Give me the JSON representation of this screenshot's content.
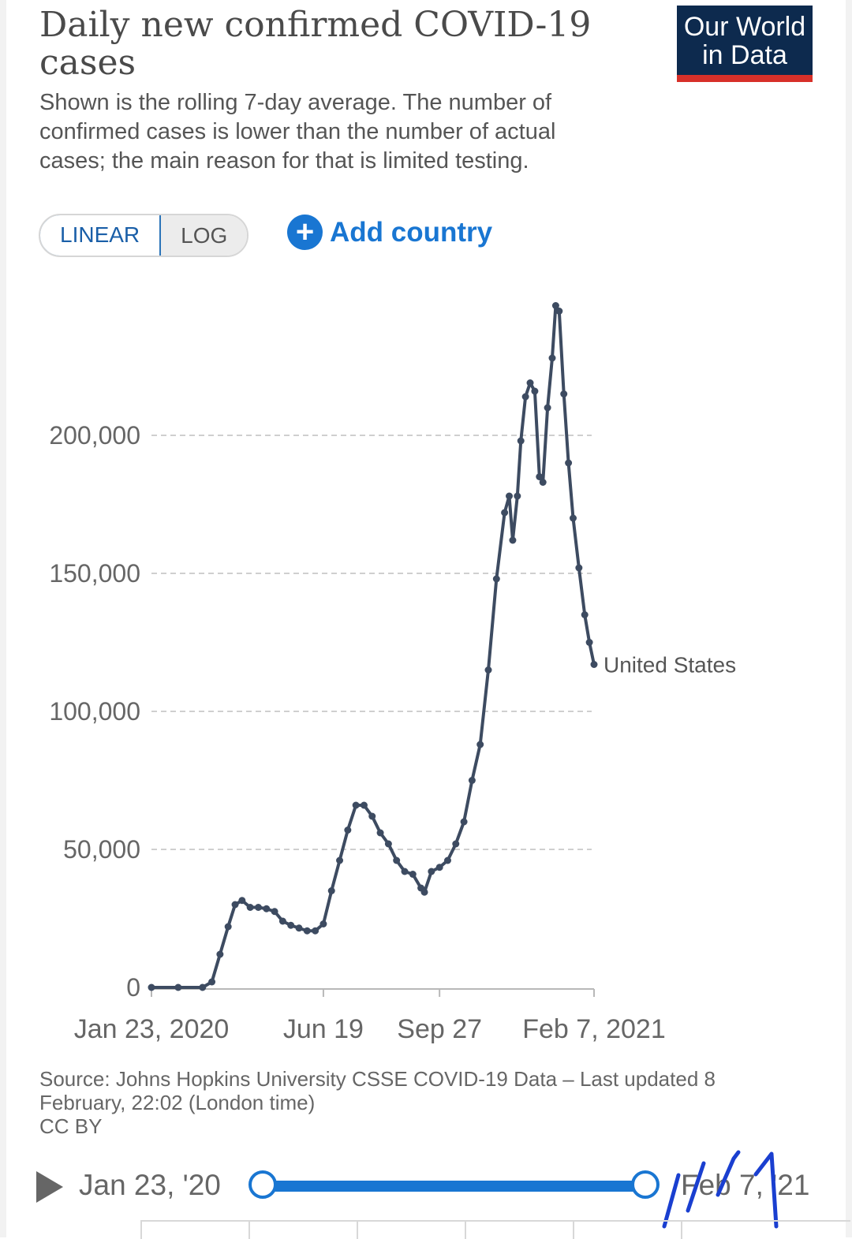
{
  "header": {
    "title": "Daily new confirmed COVID-19 cases",
    "subtitle": "Shown is the rolling 7-day average. The number of confirmed cases is lower than the number of actual cases; the main reason for that is limited testing.",
    "logo_line1": "Our World",
    "logo_line2": "in Data",
    "logo_colors": {
      "background": "#0d2a4e",
      "stripe": "#d73029"
    }
  },
  "controls": {
    "scale_options": [
      "LINEAR",
      "LOG"
    ],
    "selected_scale": "LINEAR",
    "add_country_label": "Add country",
    "add_icon": "plus-circle-icon",
    "accent_color": "#1976d2"
  },
  "chart_data": {
    "type": "line",
    "title": "Daily new confirmed COVID-19 cases",
    "y_ticks": [
      "0",
      "50,000",
      "100,000",
      "150,000",
      "200,000"
    ],
    "y_tick_values": [
      0,
      50000,
      100000,
      150000,
      200000
    ],
    "x_ticks": [
      "Jan 23, 2020",
      "Jun 19",
      "Sep 27",
      "Feb 7, 2021"
    ],
    "ylim": [
      0,
      250000
    ],
    "grid": "horizontal dashed",
    "series": [
      {
        "name": "United States",
        "color": "#3d4b61",
        "points": [
          [
            "2020-01-23",
            0
          ],
          [
            "2020-02-15",
            0
          ],
          [
            "2020-03-07",
            0
          ],
          [
            "2020-03-15",
            2000
          ],
          [
            "2020-03-22",
            12000
          ],
          [
            "2020-03-29",
            22000
          ],
          [
            "2020-04-04",
            30000
          ],
          [
            "2020-04-10",
            31500
          ],
          [
            "2020-04-17",
            29000
          ],
          [
            "2020-04-24",
            29000
          ],
          [
            "2020-05-01",
            28500
          ],
          [
            "2020-05-08",
            27500
          ],
          [
            "2020-05-15",
            24000
          ],
          [
            "2020-05-22",
            22500
          ],
          [
            "2020-05-29",
            21500
          ],
          [
            "2020-06-05",
            20500
          ],
          [
            "2020-06-12",
            20500
          ],
          [
            "2020-06-19",
            23000
          ],
          [
            "2020-06-26",
            35000
          ],
          [
            "2020-07-03",
            46000
          ],
          [
            "2020-07-10",
            57000
          ],
          [
            "2020-07-17",
            66000
          ],
          [
            "2020-07-24",
            66000
          ],
          [
            "2020-07-31",
            62000
          ],
          [
            "2020-08-07",
            56000
          ],
          [
            "2020-08-14",
            52000
          ],
          [
            "2020-08-21",
            46000
          ],
          [
            "2020-08-28",
            42000
          ],
          [
            "2020-09-04",
            41000
          ],
          [
            "2020-09-11",
            36000
          ],
          [
            "2020-09-14",
            34500
          ],
          [
            "2020-09-20",
            42000
          ],
          [
            "2020-09-27",
            43500
          ],
          [
            "2020-10-04",
            46000
          ],
          [
            "2020-10-11",
            52000
          ],
          [
            "2020-10-18",
            60000
          ],
          [
            "2020-10-25",
            75000
          ],
          [
            "2020-11-01",
            88000
          ],
          [
            "2020-11-08",
            115000
          ],
          [
            "2020-11-15",
            148000
          ],
          [
            "2020-11-22",
            172000
          ],
          [
            "2020-11-26",
            178000
          ],
          [
            "2020-11-29",
            162000
          ],
          [
            "2020-12-03",
            178000
          ],
          [
            "2020-12-06",
            198000
          ],
          [
            "2020-12-10",
            214000
          ],
          [
            "2020-12-14",
            219000
          ],
          [
            "2020-12-18",
            216000
          ],
          [
            "2020-12-22",
            185000
          ],
          [
            "2020-12-25",
            183000
          ],
          [
            "2020-12-29",
            210000
          ],
          [
            "2021-01-02",
            228000
          ],
          [
            "2021-01-05",
            247000
          ],
          [
            "2021-01-08",
            245000
          ],
          [
            "2021-01-12",
            215000
          ],
          [
            "2021-01-16",
            190000
          ],
          [
            "2021-01-20",
            170000
          ],
          [
            "2021-01-25",
            152000
          ],
          [
            "2021-01-30",
            135000
          ],
          [
            "2021-02-03",
            125000
          ],
          [
            "2021-02-07",
            117000
          ]
        ]
      }
    ]
  },
  "footer": {
    "source_line1": "Source: Johns Hopkins University CSSE COVID-19 Data – Last updated 8",
    "source_line2": "February, 22:02 (London time)",
    "license": "CC BY"
  },
  "timeline": {
    "start_label": "Jan 23, '20",
    "end_label": "Feb 7, '21",
    "track_color": "#1976d2"
  }
}
